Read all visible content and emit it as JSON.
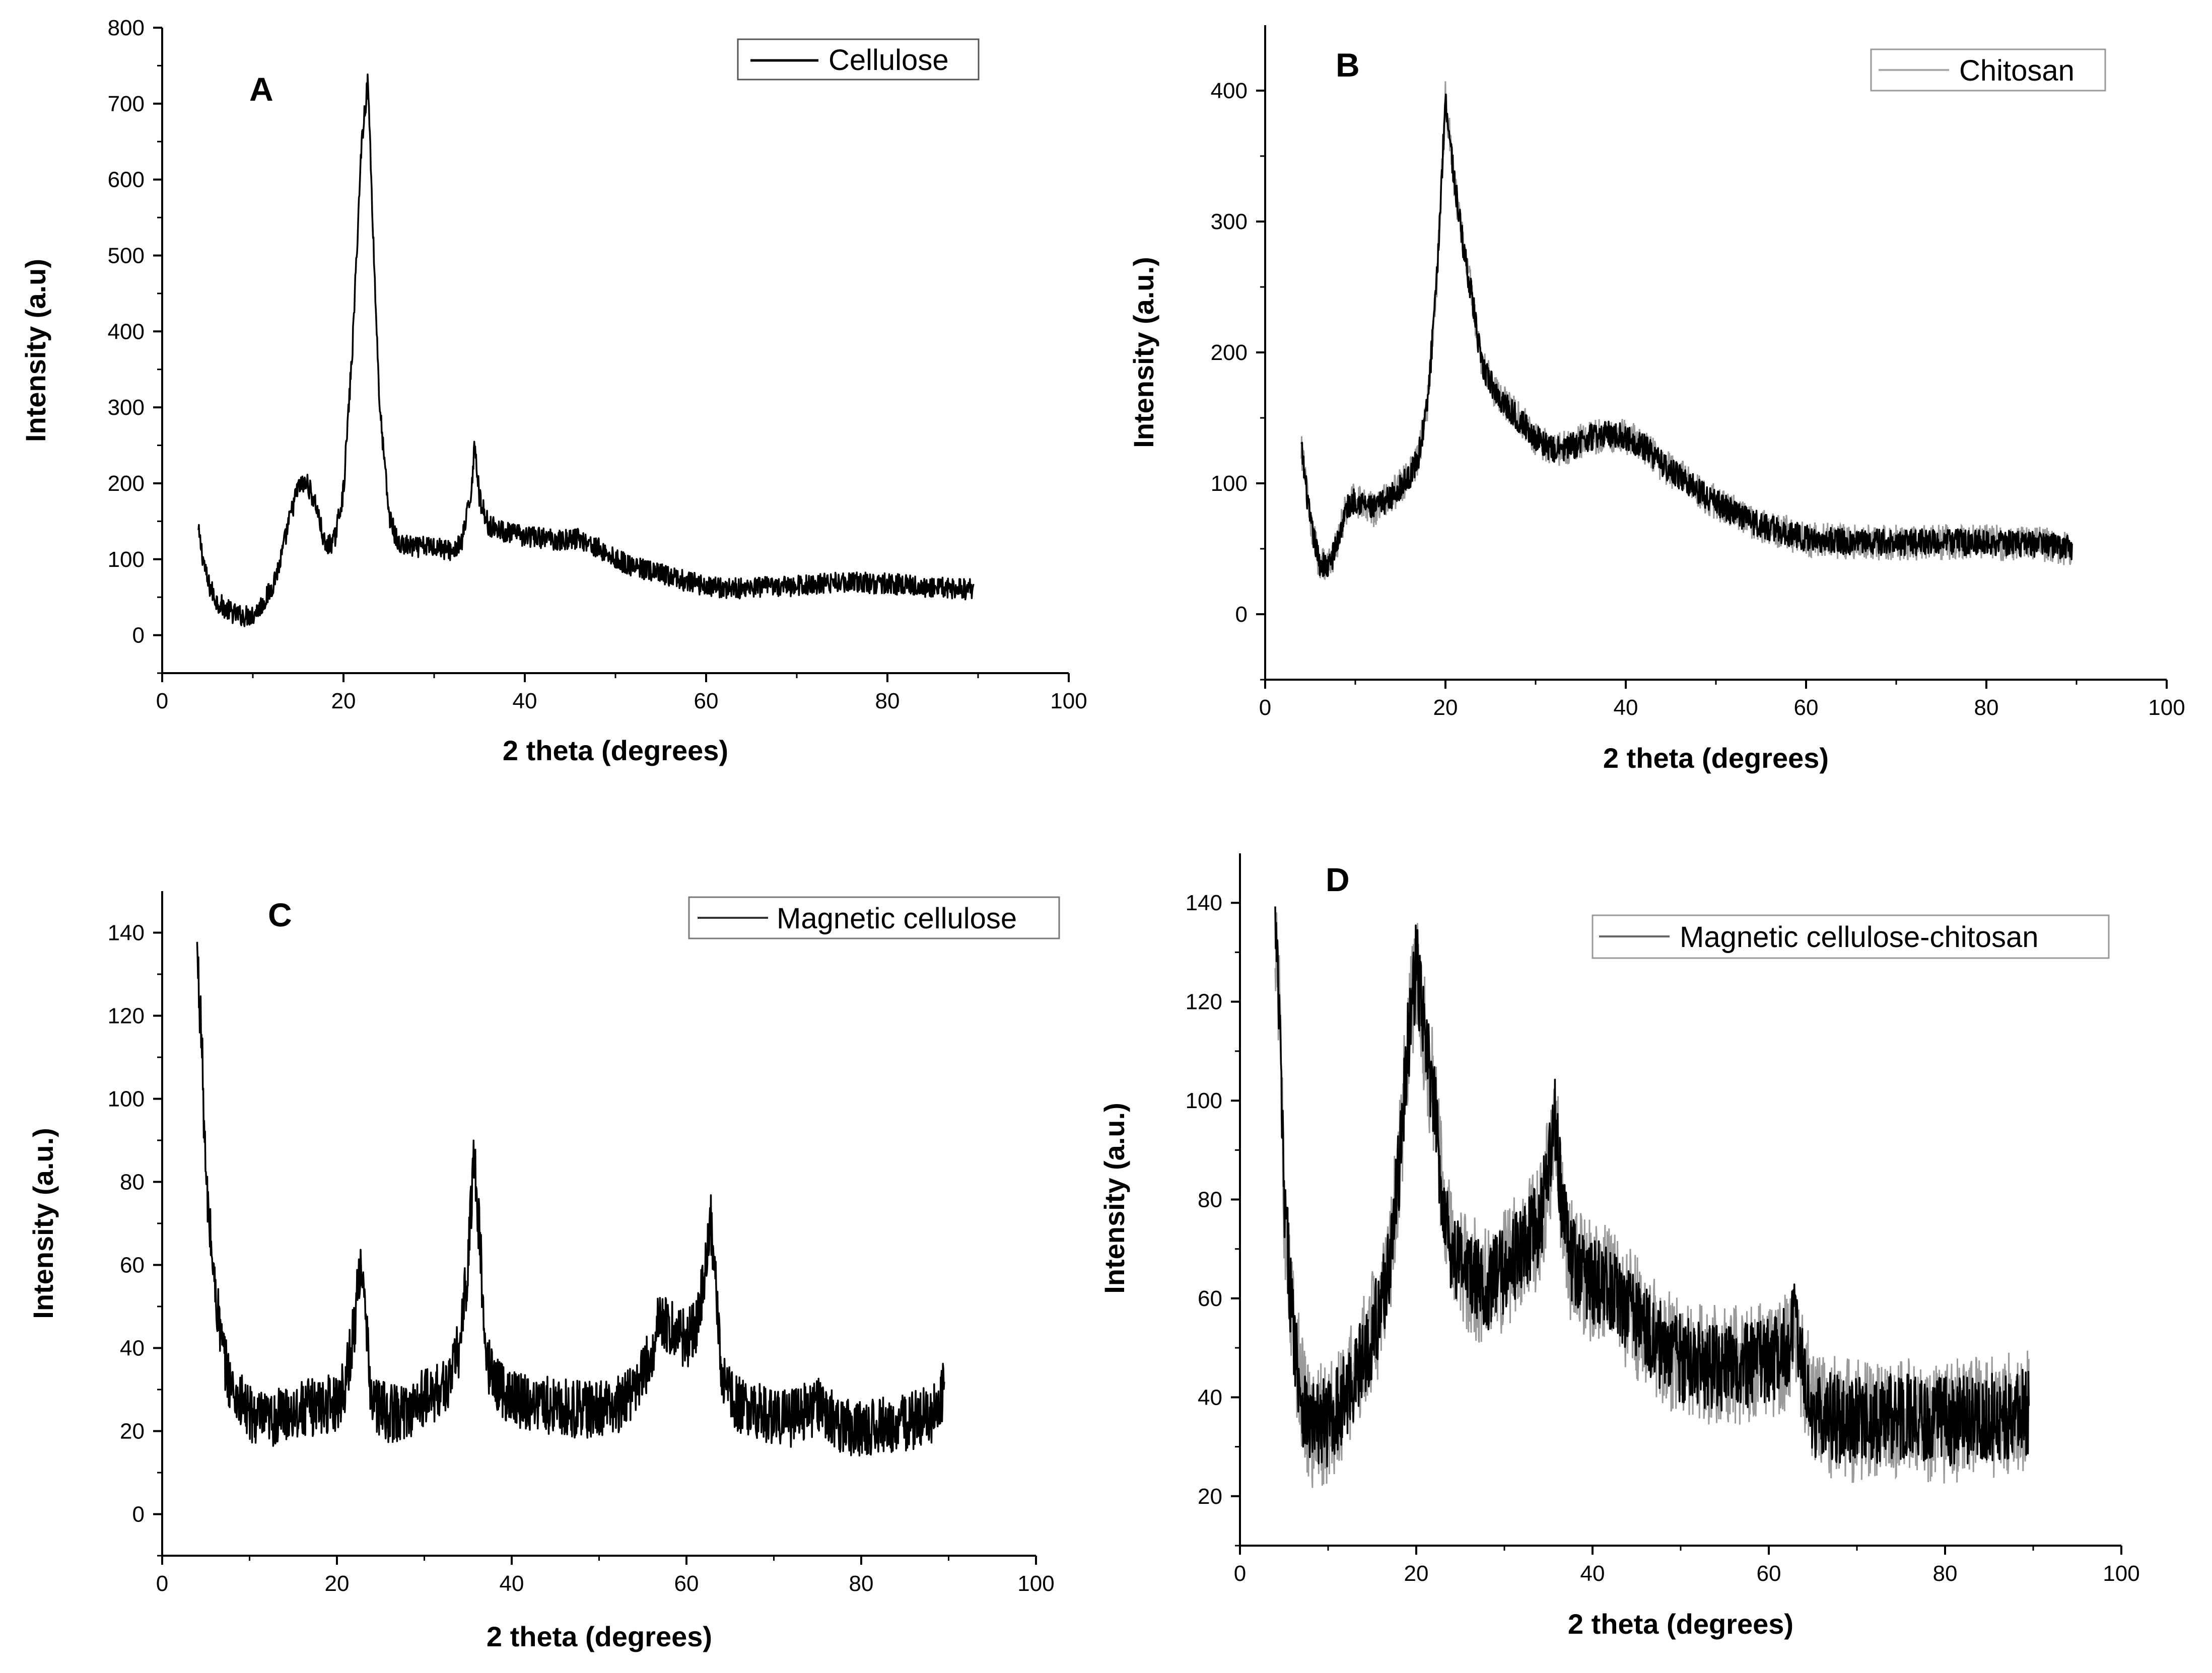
{
  "chart_data": [
    {
      "type": "line",
      "panel_label": "A",
      "title": "",
      "xlabel": "2 theta (degrees)",
      "ylabel": "Intensity (a.u)",
      "xlim": [
        0,
        100
      ],
      "ylim": [
        -50,
        800
      ],
      "xticks": [
        "0",
        "20",
        "40",
        "60",
        "80",
        "100"
      ],
      "yticks": [
        "0",
        "100",
        "200",
        "300",
        "400",
        "500",
        "600",
        "700",
        "800"
      ],
      "legend": "Cellulose",
      "legend_position": "top-right",
      "line_color": "#000000",
      "noise": 14,
      "series": [
        {
          "name": "Cellulose",
          "x": [
            4,
            5,
            6,
            7,
            8,
            9,
            10,
            11,
            12,
            13,
            14,
            15,
            16,
            17,
            18,
            19,
            20,
            21,
            22,
            22.7,
            23.5,
            24,
            25,
            26,
            28,
            30,
            32,
            33,
            34,
            34.5,
            35,
            36,
            38,
            40,
            42,
            44,
            46,
            48,
            50,
            52,
            55,
            58,
            60,
            62,
            65,
            70,
            75,
            80,
            85,
            89.5
          ],
          "values": [
            135,
            70,
            45,
            35,
            28,
            25,
            27,
            40,
            60,
            95,
            150,
            195,
            200,
            170,
            115,
            125,
            190,
            380,
            650,
            730,
            450,
            300,
            160,
            120,
            115,
            118,
            110,
            120,
            180,
            255,
            180,
            145,
            135,
            130,
            128,
            125,
            128,
            115,
            100,
            90,
            80,
            70,
            65,
            62,
            62,
            65,
            70,
            68,
            63,
            60
          ]
        }
      ]
    },
    {
      "type": "line",
      "panel_label": "B",
      "title": "",
      "xlabel": "2 theta (degrees)",
      "ylabel": "Intensity (a.u.)",
      "xlim": [
        0,
        100
      ],
      "ylim": [
        -50,
        450
      ],
      "xticks": [
        "0",
        "20",
        "40",
        "60",
        "80",
        "100"
      ],
      "yticks": [
        "0",
        "100",
        "200",
        "300",
        "400"
      ],
      "legend": "Chitosan",
      "legend_position": "top-right",
      "line_color": "#000000",
      "noise": 10,
      "series": [
        {
          "name": "Chitosan",
          "x": [
            4,
            5,
            6,
            7,
            8,
            9,
            10,
            12,
            14,
            16,
            17,
            18,
            19,
            20,
            21,
            22,
            23,
            24,
            26,
            28,
            30,
            32,
            34,
            36,
            38,
            40,
            42,
            44,
            46,
            48,
            50,
            52,
            55,
            58,
            60,
            65,
            70,
            75,
            80,
            85,
            89.5
          ],
          "values": [
            128,
            70,
            40,
            35,
            55,
            80,
            88,
            80,
            90,
            105,
            120,
            160,
            250,
            395,
            330,
            280,
            240,
            190,
            165,
            150,
            135,
            125,
            128,
            135,
            138,
            135,
            128,
            115,
            105,
            95,
            85,
            78,
            68,
            62,
            58,
            55,
            55,
            55,
            55,
            54,
            50
          ]
        }
      ]
    },
    {
      "type": "line",
      "panel_label": "C",
      "title": "",
      "xlabel": "2 theta (degrees)",
      "ylabel": "Intensity (a.u.)",
      "xlim": [
        0,
        100
      ],
      "ylim": [
        -10,
        150
      ],
      "xticks": [
        "0",
        "20",
        "40",
        "60",
        "80",
        "100"
      ],
      "yticks": [
        "0",
        "20",
        "40",
        "60",
        "80",
        "100",
        "120",
        "140"
      ],
      "legend": "Magnetic cellulose",
      "legend_position": "top-right",
      "line_color": "#000000",
      "noise": 7,
      "series": [
        {
          "name": "Magnetic cellulose",
          "x": [
            4,
            4.5,
            5,
            6,
            7,
            8,
            10,
            12,
            15,
            18,
            20,
            21,
            22,
            22.7,
            23.5,
            24,
            26,
            28,
            30,
            32,
            33,
            34,
            35,
            35.7,
            36.5,
            37,
            38,
            40,
            42,
            45,
            48,
            50,
            52,
            54,
            56,
            57,
            58,
            60,
            61,
            62,
            62.8,
            63.5,
            64,
            65,
            67,
            70,
            72,
            75,
            78,
            80,
            85,
            88,
            89.5
          ],
          "values": [
            135,
            115,
            80,
            55,
            38,
            30,
            24,
            22,
            25,
            26,
            27,
            32,
            45,
            62,
            40,
            27,
            24,
            25,
            28,
            30,
            33,
            40,
            60,
            88,
            60,
            38,
            32,
            28,
            27,
            26,
            25,
            25,
            26,
            30,
            38,
            48,
            45,
            42,
            45,
            55,
            70,
            50,
            35,
            28,
            25,
            24,
            23,
            26,
            21,
            21,
            22,
            24,
            30
          ]
        }
      ]
    },
    {
      "type": "line",
      "panel_label": "D",
      "title": "",
      "xlabel": "2 theta (degrees)",
      "ylabel": "Intensity (a.u.)",
      "xlim": [
        0,
        100
      ],
      "ylim": [
        10,
        150
      ],
      "xticks": [
        "0",
        "20",
        "40",
        "60",
        "80",
        "100"
      ],
      "yticks": [
        "20",
        "40",
        "60",
        "80",
        "100",
        "120",
        "140"
      ],
      "legend": "Magnetic cellulose-chitosan",
      "legend_position": "top-right",
      "line_color": "#000000",
      "noise": 9,
      "series": [
        {
          "name": "Magnetic cellulose-chitosan",
          "x": [
            4,
            4.5,
            5,
            6,
            7,
            8,
            10,
            12,
            14,
            16,
            17,
            18,
            19,
            20,
            21,
            22,
            23,
            24,
            26,
            28,
            30,
            32,
            34,
            35,
            35.8,
            36.5,
            37.5,
            40,
            42,
            45,
            48,
            50,
            52,
            55,
            58,
            60,
            62,
            63,
            64,
            65,
            67,
            70,
            75,
            80,
            85,
            89.5
          ],
          "values": [
            135,
            115,
            80,
            55,
            40,
            34,
            35,
            40,
            48,
            58,
            68,
            85,
            110,
            128,
            112,
            100,
            80,
            70,
            65,
            62,
            66,
            70,
            75,
            85,
            97,
            80,
            68,
            63,
            62,
            56,
            50,
            48,
            47,
            46,
            46,
            47,
            50,
            55,
            45,
            37,
            36,
            35,
            36,
            35,
            36,
            37
          ]
        }
      ]
    }
  ]
}
